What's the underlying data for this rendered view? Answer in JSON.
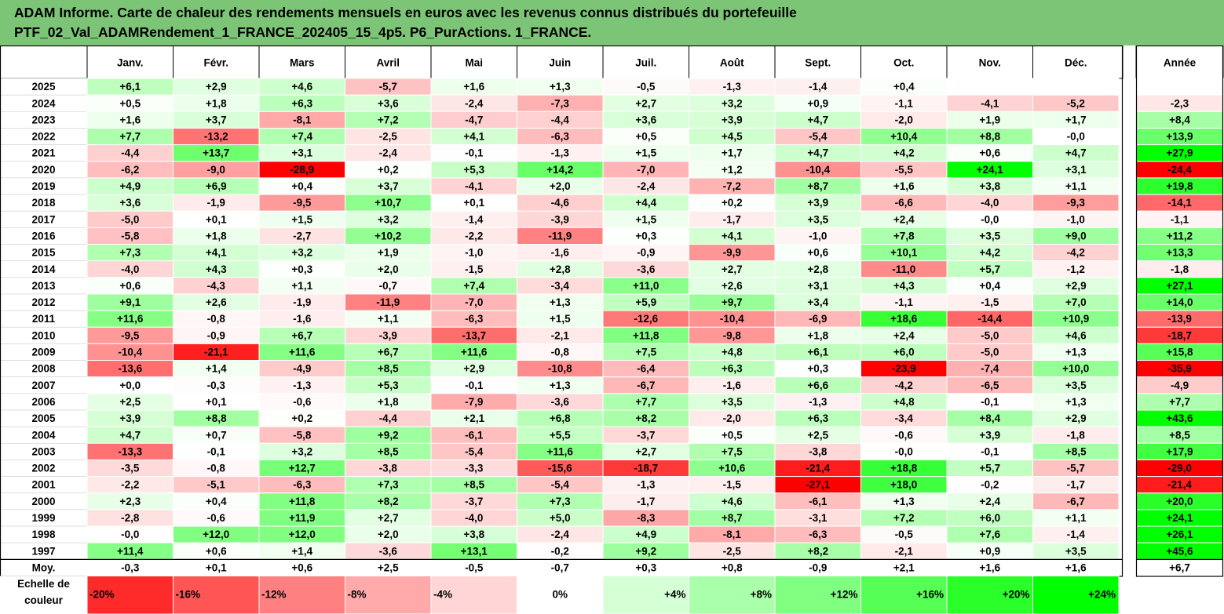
{
  "title": {
    "line1": "ADAM Informe. Carte de chaleur des rendements mensuels en euros avec les revenus connus distribués du portefeuille",
    "line2": "PTF_02_Val_ADAMRendement_1_FRANCE_202405_15_4p5. P6_PurActions. 1_FRANCE."
  },
  "colors": {
    "negative": "#ff0000",
    "neutral": "#ffffff",
    "positive": "#00ff00",
    "title_band": "#7cc576"
  },
  "chart_data": {
    "type": "heatmap",
    "title": "ADAM Informe. Carte de chaleur des rendements mensuels en euros avec les revenus connus distribués du portefeuille PTF_02_Val_ADAMRendement_1_FRANCE_202405_15_4p5. P6_PurActions. 1_FRANCE.",
    "months": [
      "Janv.",
      "Févr.",
      "Mars",
      "Avril",
      "Mai",
      "Juin",
      "Juil.",
      "Août",
      "Sept.",
      "Oct.",
      "Nov.",
      "Déc."
    ],
    "annual_label": "Année",
    "rows": [
      {
        "year": "2025",
        "values": [
          "+6,1",
          "+2,9",
          "+4,6",
          "-5,7",
          "+1,6",
          "+1,3",
          "-0,5",
          "-1,3",
          "-1,4",
          "+0,4",
          "",
          ""
        ],
        "annual": ""
      },
      {
        "year": "2024",
        "values": [
          "+0,5",
          "+1,8",
          "+6,3",
          "+3,6",
          "-2,4",
          "-7,3",
          "+2,7",
          "+3,2",
          "+0,9",
          "-1,1",
          "-4,1",
          "-5,2"
        ],
        "annual": "-2,3"
      },
      {
        "year": "2023",
        "values": [
          "+1,6",
          "+3,7",
          "-8,1",
          "+7,2",
          "-4,7",
          "-4,4",
          "+3,6",
          "+3,9",
          "+4,7",
          "-2,0",
          "+1,9",
          "+1,7"
        ],
        "annual": "+8,4"
      },
      {
        "year": "2022",
        "values": [
          "+7,7",
          "-13,2",
          "+7,4",
          "-2,5",
          "+4,1",
          "-6,3",
          "+0,5",
          "+4,5",
          "-5,4",
          "+10,4",
          "+8,8",
          "-0,0"
        ],
        "annual": "+13,9"
      },
      {
        "year": "2021",
        "values": [
          "-4,4",
          "+13,7",
          "+3,1",
          "-2,4",
          "-0,1",
          "-1,3",
          "+1,5",
          "+1,7",
          "+4,7",
          "+4,2",
          "+0,6",
          "+4,7"
        ],
        "annual": "+27,9"
      },
      {
        "year": "2020",
        "values": [
          "-6,2",
          "-9,0",
          "-28,9",
          "+0,2",
          "+5,3",
          "+14,2",
          "-7,0",
          "+1,2",
          "-10,4",
          "-5,5",
          "+24,1",
          "+3,1"
        ],
        "annual": "-24,4"
      },
      {
        "year": "2019",
        "values": [
          "+4,9",
          "+6,9",
          "+0,4",
          "+3,7",
          "-4,1",
          "+2,0",
          "-2,4",
          "-7,2",
          "+8,7",
          "+1,6",
          "+3,8",
          "+1,1"
        ],
        "annual": "+19,8"
      },
      {
        "year": "2018",
        "values": [
          "+3,6",
          "-1,9",
          "-9,5",
          "+10,7",
          "+0,1",
          "-4,6",
          "+4,4",
          "+0,2",
          "+3,9",
          "-6,6",
          "-4,0",
          "-9,3"
        ],
        "annual": "-14,1"
      },
      {
        "year": "2017",
        "values": [
          "-5,0",
          "+0,1",
          "+1,5",
          "+3,2",
          "-1,4",
          "-3,9",
          "+1,5",
          "-1,7",
          "+3,5",
          "+2,4",
          "-0,0",
          "-1,0"
        ],
        "annual": "-1,1"
      },
      {
        "year": "2016",
        "values": [
          "-5,8",
          "+1,8",
          "-2,7",
          "+10,2",
          "-2,2",
          "-11,9",
          "+0,3",
          "+4,1",
          "-1,0",
          "+7,8",
          "+3,5",
          "+9,0"
        ],
        "annual": "+11,2"
      },
      {
        "year": "2015",
        "values": [
          "+7,3",
          "+4,1",
          "+3,2",
          "+1,9",
          "-1,0",
          "-1,6",
          "-0,9",
          "-9,9",
          "+0,6",
          "+10,1",
          "+4,2",
          "-4,2"
        ],
        "annual": "+13,3"
      },
      {
        "year": "2014",
        "values": [
          "-4,0",
          "+4,3",
          "+0,3",
          "+2,0",
          "-1,5",
          "+2,8",
          "-3,6",
          "+2,7",
          "+2,8",
          "-11,0",
          "+5,7",
          "-1,2"
        ],
        "annual": "-1,8"
      },
      {
        "year": "2013",
        "values": [
          "+0,6",
          "-4,3",
          "+1,1",
          "-0,7",
          "+7,4",
          "-3,4",
          "+11,0",
          "+2,6",
          "+3,1",
          "+4,3",
          "+0,4",
          "+2,9"
        ],
        "annual": "+27,1"
      },
      {
        "year": "2012",
        "values": [
          "+9,1",
          "+2,6",
          "-1,9",
          "-11,9",
          "-7,0",
          "+1,3",
          "+5,9",
          "+9,7",
          "+3,4",
          "-1,1",
          "-1,5",
          "+7,0"
        ],
        "annual": "+14,0"
      },
      {
        "year": "2011",
        "values": [
          "+11,6",
          "-0,8",
          "-1,6",
          "+1,1",
          "-6,3",
          "+1,5",
          "-12,6",
          "-10,4",
          "-6,9",
          "+18,6",
          "-14,4",
          "+10,9"
        ],
        "annual": "-13,9"
      },
      {
        "year": "2010",
        "values": [
          "-9,5",
          "-0,9",
          "+6,7",
          "-3,9",
          "-13,7",
          "-2,1",
          "+11,8",
          "-9,8",
          "+1,8",
          "+2,4",
          "-5,0",
          "+4,6"
        ],
        "annual": "-18,7"
      },
      {
        "year": "2009",
        "values": [
          "-10,4",
          "-21,1",
          "+11,6",
          "+6,7",
          "+11,6",
          "-0,8",
          "+7,5",
          "+4,8",
          "+6,1",
          "+6,0",
          "-5,0",
          "+1,3"
        ],
        "annual": "+15,8"
      },
      {
        "year": "2008",
        "values": [
          "-13,6",
          "+1,4",
          "-4,9",
          "+8,5",
          "+2,9",
          "-10,8",
          "-6,4",
          "+6,3",
          "+0,3",
          "-23,9",
          "-7,4",
          "+10,0"
        ],
        "annual": "-35,9"
      },
      {
        "year": "2007",
        "values": [
          "+0,0",
          "-0,3",
          "-1,3",
          "+5,3",
          "-0,1",
          "+1,3",
          "-6,7",
          "-1,6",
          "+6,6",
          "-4,2",
          "-6,5",
          "+3,5"
        ],
        "annual": "-4,9"
      },
      {
        "year": "2006",
        "values": [
          "+2,5",
          "+0,1",
          "-0,6",
          "+1,8",
          "-7,9",
          "-3,6",
          "+7,7",
          "+3,5",
          "-1,3",
          "+4,8",
          "-0,1",
          "+1,3"
        ],
        "annual": "+7,7"
      },
      {
        "year": "2005",
        "values": [
          "+3,9",
          "+8,8",
          "+0,2",
          "-4,4",
          "+2,1",
          "+6,8",
          "+8,2",
          "-2,0",
          "+6,3",
          "-3,4",
          "+8,4",
          "+2,9"
        ],
        "annual": "+43,6"
      },
      {
        "year": "2004",
        "values": [
          "+4,7",
          "+0,7",
          "-5,8",
          "+9,2",
          "-6,1",
          "+5,5",
          "-3,7",
          "+0,5",
          "+2,5",
          "-0,6",
          "+3,9",
          "-1,8"
        ],
        "annual": "+8,5"
      },
      {
        "year": "2003",
        "values": [
          "-13,3",
          "-0,1",
          "+3,2",
          "+8,5",
          "-5,4",
          "+11,6",
          "+2,7",
          "+7,5",
          "-3,8",
          "-0,0",
          "-0,1",
          "+8,5"
        ],
        "annual": "+17,9"
      },
      {
        "year": "2002",
        "values": [
          "-3,5",
          "-0,8",
          "+12,7",
          "-3,8",
          "-3,3",
          "-15,6",
          "-18,7",
          "+10,6",
          "-21,4",
          "+18,8",
          "+5,7",
          "-5,7"
        ],
        "annual": "-29,0"
      },
      {
        "year": "2001",
        "values": [
          "-2,2",
          "-5,1",
          "-6,3",
          "+7,3",
          "+8,5",
          "-5,4",
          "-1,3",
          "-1,5",
          "-27,1",
          "+18,0",
          "-0,2",
          "-1,7"
        ],
        "annual": "-21,4"
      },
      {
        "year": "2000",
        "values": [
          "+2,3",
          "+0,4",
          "+11,8",
          "+8,2",
          "-3,7",
          "+7,3",
          "-1,7",
          "+4,6",
          "-6,1",
          "+1,3",
          "+2,4",
          "-6,7"
        ],
        "annual": "+20,0"
      },
      {
        "year": "1999",
        "values": [
          "-2,8",
          "-0,6",
          "+11,9",
          "+2,7",
          "-4,0",
          "+5,0",
          "-8,3",
          "+8,7",
          "-3,1",
          "+7,2",
          "+6,0",
          "+1,1"
        ],
        "annual": "+24,1"
      },
      {
        "year": "1998",
        "values": [
          "-0,0",
          "+12,0",
          "+12,0",
          "+2,0",
          "+3,8",
          "-2,4",
          "+4,9",
          "-8,1",
          "-6,3",
          "-0,5",
          "+7,6",
          "-1,4"
        ],
        "annual": "+26,1"
      },
      {
        "year": "1997",
        "values": [
          "+11,4",
          "+0,6",
          "+1,4",
          "-3,6",
          "+13,1",
          "-0,2",
          "+9,2",
          "-2,5",
          "+8,2",
          "-2,1",
          "+0,9",
          "+3,5"
        ],
        "annual": "+45,6"
      }
    ],
    "average": {
      "label": "Moy.",
      "values": [
        "-0,3",
        "+0,1",
        "+0,6",
        "+2,5",
        "-0,5",
        "-0,7",
        "+0,3",
        "+0,8",
        "-0,9",
        "+2,1",
        "+1,6",
        "+1,6"
      ],
      "annual": "+6,7"
    },
    "scale": {
      "label_line1": "Echelle de",
      "label_line2": "couleur",
      "steps": [
        {
          "label": "-20%",
          "value": -20
        },
        {
          "label": "-16%",
          "value": -16
        },
        {
          "label": "-12%",
          "value": -12
        },
        {
          "label": "-8%",
          "value": -8
        },
        {
          "label": "-4%",
          "value": -4
        },
        {
          "label": "0%",
          "value": 0
        },
        {
          "label": "+4%",
          "value": 4
        },
        {
          "label": "+8%",
          "value": 8
        },
        {
          "label": "+12%",
          "value": 12
        },
        {
          "label": "+16%",
          "value": 16
        },
        {
          "label": "+20%",
          "value": 20
        },
        {
          "label": "+24%",
          "value": 24
        }
      ]
    }
  }
}
